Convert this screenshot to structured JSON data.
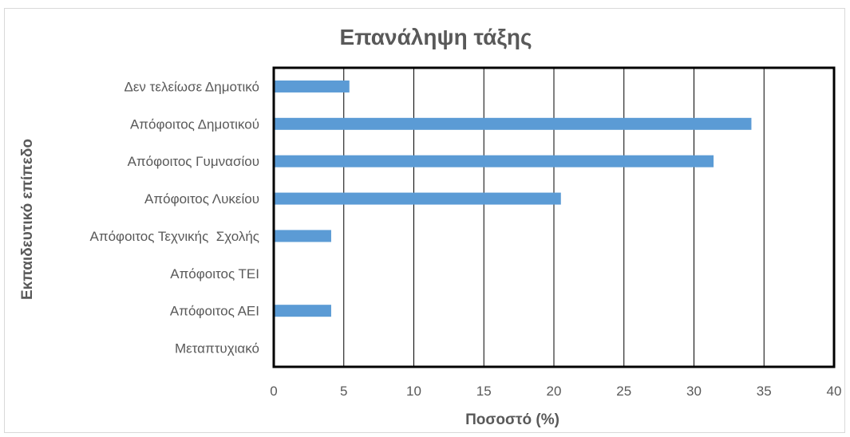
{
  "chart_data": {
    "type": "bar",
    "orientation": "horizontal",
    "title": "Επανάληψη τάξης",
    "xlabel": "Ποσοστό (%)",
    "ylabel": "Εκπαιδευτικό επίπεδο",
    "categories": [
      "Δεν τελείωσε Δημοτικό",
      "Απόφοιτος Δημοτικού",
      "Απόφοιτος Γυμνασίου",
      "Απόφοιτος Λυκείου",
      "Απόφοιτος Τεχνικής  Σχολής",
      "Απόφοιτος ΤΕΙ",
      "Απόφοιτος ΑΕΙ",
      "Μεταπτυχιακό"
    ],
    "values": [
      5.4,
      34.1,
      31.4,
      20.5,
      4.1,
      0,
      4.1,
      0
    ],
    "xlim": [
      0,
      40
    ],
    "xticks": [
      "0",
      "5",
      "10",
      "15",
      "20",
      "25",
      "30",
      "35",
      "40"
    ],
    "grid": "vertical",
    "bar_color": "#5b9bd5"
  }
}
